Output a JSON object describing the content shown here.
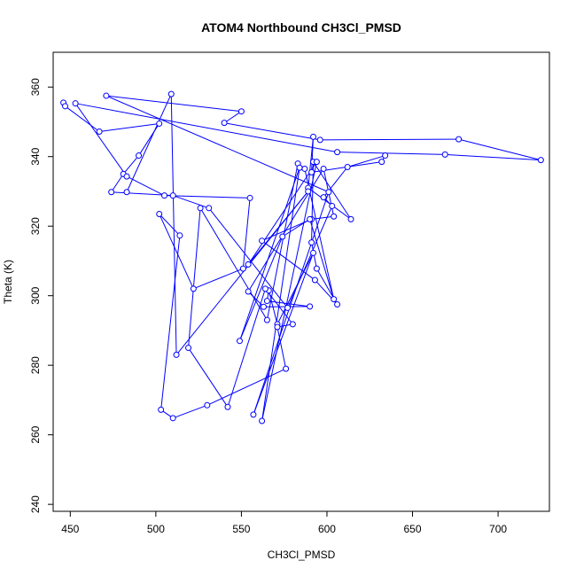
{
  "chart_data": {
    "type": "line",
    "title": "ATOM4 Northbound CH3Cl_PMSD",
    "xlabel": "CH3Cl_PMSD",
    "ylabel": "Theta (K)",
    "xlim": [
      440,
      730
    ],
    "ylim": [
      238,
      370
    ],
    "x_ticks": [
      450,
      500,
      550,
      600,
      650,
      700
    ],
    "y_ticks": [
      240,
      260,
      280,
      300,
      320,
      340,
      360
    ],
    "grid": false,
    "legend": "none",
    "marker": "open-circle",
    "colors": {
      "series": "#0000ff",
      "axes": "#000000",
      "background": "#ffffff"
    },
    "series": [
      {
        "x": [
          446,
          447,
          467,
          502,
          490,
          481,
          474,
          510,
          531,
          577,
          603,
          598,
          612,
          634,
          632,
          591,
          592,
          589,
          614,
          592,
          591,
          594,
          606,
          593,
          562,
          591,
          604,
          598,
          554,
          563,
          590,
          565,
          566,
          571,
          592,
          557,
          601,
          471,
          550,
          540,
          596,
          677,
          725,
          669,
          606,
          453,
          483,
          505,
          555,
          551,
          522,
          502,
          514,
          503,
          510,
          530,
          576,
          571,
          580,
          564,
          542,
          519,
          526,
          565,
          583,
          587,
          604,
          590,
          574,
          549,
          584,
          562,
          594,
          554,
          589,
          512,
          509,
          483
        ],
        "y": [
          355.5,
          354.5,
          347.2,
          349.5,
          340.3,
          335.0,
          329.8,
          328.8,
          325.2,
          296.5,
          325.8,
          328.3,
          337.0,
          340.3,
          338.5,
          335.5,
          345.7,
          331.0,
          322.0,
          338.5,
          315.3,
          307.8,
          297.5,
          304.5,
          315.8,
          322.0,
          322.8,
          336.5,
          301.2,
          296.8,
          296.9,
          298.5,
          301.5,
          291.8,
          312.3,
          265.8,
          329.8,
          357.5,
          353.0,
          349.7,
          344.8,
          345.0,
          339.0,
          340.6,
          341.3,
          355.3,
          334.3,
          328.8,
          328.1,
          307.8,
          302.0,
          323.5,
          317.3,
          267.2,
          264.8,
          268.5,
          279.0,
          291.0,
          291.8,
          302.0,
          268.0,
          285.0,
          325.2,
          293.0,
          338.0,
          336.5,
          299.0,
          322.0,
          317.0,
          287.0,
          336.8,
          264.0,
          338.5,
          309.0,
          330.0,
          283.0,
          358.0,
          329.8
        ]
      }
    ]
  }
}
